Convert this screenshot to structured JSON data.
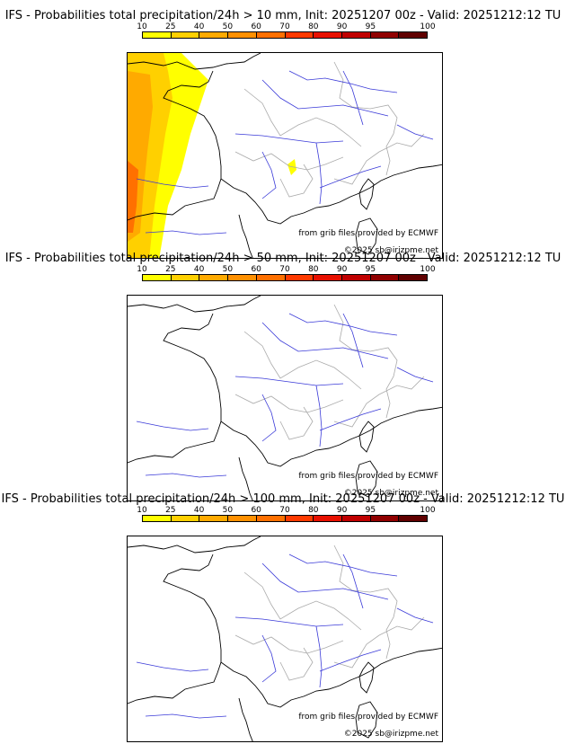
{
  "legend": {
    "labels": [
      "10",
      "25",
      "40",
      "50",
      "60",
      "70",
      "80",
      "90",
      "95",
      "100"
    ],
    "colors": [
      "#ffff00",
      "#ffd000",
      "#ffaa00",
      "#ff9000",
      "#ff7000",
      "#ff3a00",
      "#e81000",
      "#c00000",
      "#900000",
      "#600000"
    ]
  },
  "panels": [
    {
      "title": "IFS - Probabilities total precipitation/24h > 10 mm, Init: 20251207 00z - Valid: 20251212:12 TU",
      "credit": "from grib files provided by ECMWF",
      "copyright": "©2025 sb@irizpme.net",
      "has_precip": true
    },
    {
      "title": "IFS - Probabilities total precipitation/24h > 50 mm, Init: 20251207 00z - Valid: 20251212:12 TU",
      "credit": "from grib files provided by ECMWF",
      "copyright": "©2025 sb@irizpme.net",
      "has_precip": false
    },
    {
      "title": "IFS - Probabilities total precipitation/24h > 100 mm, Init: 20251207 00z - Valid: 20251212:12 TU",
      "credit": "from grib files provided by ECMWF",
      "copyright": "©2025 sb@irizpme.net",
      "has_precip": false
    }
  ]
}
